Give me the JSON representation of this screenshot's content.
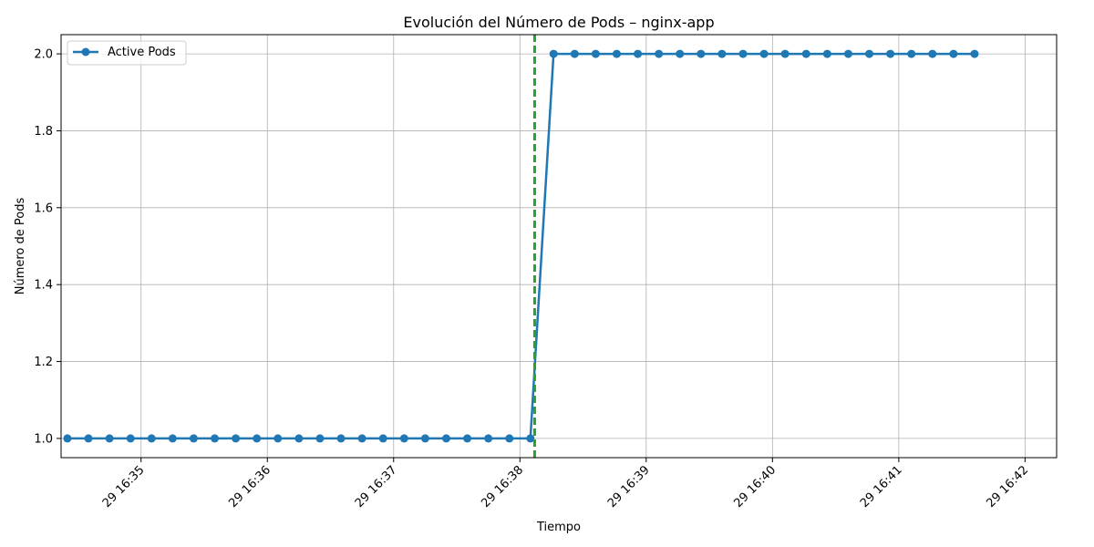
{
  "chart_data": {
    "type": "line",
    "title": "Evolución del Número de Pods – nginx-app",
    "xlabel": "Tiempo",
    "ylabel": "Número de Pods",
    "x_tick_labels": [
      "29 16:35",
      "29 16:36",
      "29 16:37",
      "29 16:38",
      "29 16:39",
      "29 16:40",
      "29 16:41",
      "29 16:42"
    ],
    "y_ticks": [
      1.0,
      1.2,
      1.4,
      1.6,
      1.8,
      2.0
    ],
    "ylim": [
      0.95,
      2.05
    ],
    "xlim_seconds": [
      "16:34:22",
      "16:42:15"
    ],
    "grid": true,
    "legend_position": "top-left",
    "series": [
      {
        "name": "Active Pods",
        "color": "#1f77b4",
        "marker": "circle",
        "x": [
          "16:34:25",
          "16:34:35",
          "16:34:45",
          "16:34:55",
          "16:35:05",
          "16:35:15",
          "16:35:25",
          "16:35:35",
          "16:35:45",
          "16:35:55",
          "16:36:05",
          "16:36:15",
          "16:36:25",
          "16:36:35",
          "16:36:45",
          "16:36:55",
          "16:37:05",
          "16:37:15",
          "16:37:25",
          "16:37:35",
          "16:37:45",
          "16:37:55",
          "16:38:05",
          "16:38:16",
          "16:38:26",
          "16:38:36",
          "16:38:46",
          "16:38:56",
          "16:39:06",
          "16:39:16",
          "16:39:26",
          "16:39:36",
          "16:39:46",
          "16:39:56",
          "16:40:06",
          "16:40:16",
          "16:40:26",
          "16:40:36",
          "16:40:46",
          "16:40:56",
          "16:41:06",
          "16:41:16",
          "16:41:26",
          "16:41:36"
        ],
        "values": [
          1,
          1,
          1,
          1,
          1,
          1,
          1,
          1,
          1,
          1,
          1,
          1,
          1,
          1,
          1,
          1,
          1,
          1,
          1,
          1,
          1,
          1,
          1,
          2,
          2,
          2,
          2,
          2,
          2,
          2,
          2,
          2,
          2,
          2,
          2,
          2,
          2,
          2,
          2,
          2,
          2,
          2,
          2,
          2
        ]
      }
    ],
    "annotations": [
      {
        "type": "vline",
        "x": "16:38:07",
        "color": "#2ca02c",
        "style": "dashed"
      }
    ]
  }
}
